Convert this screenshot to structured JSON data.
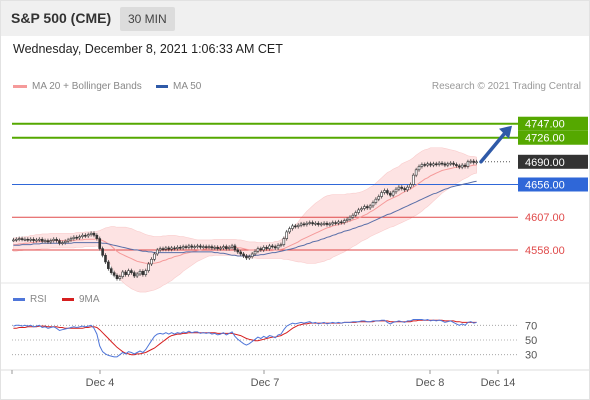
{
  "header": {
    "title": "S&P 500 (CME)",
    "timeframe": "30 MIN"
  },
  "datetime": "Wednesday, December 8, 2021 1:06:33 AM CET",
  "legend": {
    "ma20": "MA 20 + Bollinger Bands",
    "ma50": "MA 50"
  },
  "credit": "Research © 2021 Trading Central",
  "osc_legend": {
    "rsi": "RSI",
    "ma": "9MA"
  },
  "colors": {
    "green": "#55a800",
    "blue": "#2f67d8",
    "red": "#e04a4a",
    "current": "#333333",
    "arrow": "#2f5aa8",
    "bb_fill": "#fde3e3",
    "ma20": "#f59a9a",
    "ma50": "#5a6fa8",
    "rsi": "#4f76d9",
    "rsi_ma": "#d61f1f"
  },
  "chart_data": [
    {
      "type": "candlestick",
      "title": "S&P 500 (CME)",
      "timeframe": "30 MIN",
      "ylim": [
        4510,
        4790
      ],
      "x_tick_labels": [
        "Dec 4",
        "Dec 7",
        "Dec 8",
        "Dec 14"
      ],
      "series": [
        {
          "name": "Price",
          "values": [
            4573,
            4574,
            4575,
            4574,
            4574,
            4573,
            4574,
            4572,
            4573,
            4574,
            4571,
            4572,
            4570,
            4572,
            4574,
            4572,
            4568,
            4569,
            4571,
            4573,
            4575,
            4577,
            4576,
            4578,
            4580,
            4579,
            4581,
            4583,
            4580,
            4575,
            4560,
            4550,
            4540,
            4530,
            4524,
            4520,
            4515,
            4518,
            4525,
            4521,
            4527,
            4524,
            4519,
            4522,
            4526,
            4521,
            4527,
            4537,
            4544,
            4552,
            4558,
            4560,
            4559,
            4561,
            4559,
            4561,
            4560,
            4562,
            4561,
            4563,
            4562,
            4564,
            4562,
            4563,
            4564,
            4562,
            4563,
            4562,
            4563,
            4561,
            4562,
            4560,
            4561,
            4563,
            4560,
            4562,
            4564,
            4558,
            4555,
            4552,
            4549,
            4546,
            4548,
            4552,
            4556,
            4560,
            4558,
            4562,
            4560,
            4564,
            4563,
            4561,
            4565,
            4566,
            4575,
            4585,
            4590,
            4594,
            4593,
            4595,
            4597,
            4596,
            4598,
            4599,
            4597,
            4598,
            4596,
            4597,
            4598,
            4596,
            4597,
            4599,
            4598,
            4600,
            4599,
            4602,
            4604,
            4607,
            4610,
            4614,
            4618,
            4620,
            4623,
            4621,
            4624,
            4629,
            4634,
            4638,
            4644,
            4647,
            4643,
            4640,
            4645,
            4649,
            4652,
            4650,
            4648,
            4652,
            4656,
            4670,
            4678,
            4683,
            4686,
            4685,
            4687,
            4685,
            4687,
            4686,
            4688,
            4687,
            4685,
            4687,
            4688,
            4686,
            4684,
            4682,
            4685,
            4683,
            4690,
            4691,
            4689,
            4690
          ]
        },
        {
          "name": "MA 20",
          "values": [
            4566,
            4566,
            4567,
            4567,
            4568,
            4568,
            4569,
            4569,
            4570,
            4570,
            4571,
            4571,
            4571,
            4572,
            4572,
            4572,
            4572,
            4572,
            4572,
            4572,
            4572,
            4572,
            4573,
            4573,
            4573,
            4574,
            4574,
            4574,
            4574,
            4575,
            4574,
            4572,
            4570,
            4567,
            4564,
            4560,
            4556,
            4553,
            4551,
            4549,
            4547,
            4545,
            4543,
            4541,
            4540,
            4539,
            4538,
            4538,
            4538,
            4538,
            4539,
            4540,
            4542,
            4543,
            4545,
            4546,
            4548,
            4549,
            4550,
            4552,
            4553,
            4554,
            4555,
            4556,
            4557,
            4558,
            4559,
            4560,
            4561,
            4561,
            4562,
            4562,
            4562,
            4562,
            4562,
            4562,
            4562,
            4562,
            4561,
            4561,
            4560,
            4559,
            4558,
            4558,
            4558,
            4557,
            4557,
            4557,
            4557,
            4557,
            4557,
            4558,
            4558,
            4559,
            4560,
            4562,
            4564,
            4566,
            4568,
            4570,
            4573,
            4575,
            4577,
            4579,
            4581,
            4583,
            4585,
            4587,
            4589,
            4591,
            4592,
            4594,
            4595,
            4596,
            4597,
            4598,
            4600,
            4601,
            4603,
            4604,
            4606,
            4608,
            4610,
            4612,
            4615,
            4617,
            4620,
            4623,
            4626,
            4629,
            4632,
            4634,
            4636,
            4638,
            4640,
            4643,
            4645,
            4647,
            4649,
            4652,
            4655,
            4658,
            4661,
            4664,
            4666,
            4669,
            4671,
            4673,
            4675,
            4677,
            4678,
            4679,
            4680,
            4681,
            4682,
            4682,
            4683,
            4683,
            4683,
            4684,
            4685,
            4685
          ]
        },
        {
          "name": "MA 50",
          "values": [
            4565,
            4565,
            4565,
            4566,
            4566,
            4566,
            4566,
            4567,
            4567,
            4567,
            4568,
            4568,
            4568,
            4568,
            4568,
            4568,
            4568,
            4568,
            4568,
            4568,
            4568,
            4569,
            4569,
            4569,
            4569,
            4569,
            4569,
            4569,
            4569,
            4569,
            4569,
            4568,
            4568,
            4567,
            4566,
            4565,
            4564,
            4563,
            4562,
            4561,
            4560,
            4559,
            4558,
            4558,
            4557,
            4556,
            4556,
            4555,
            4555,
            4554,
            4554,
            4554,
            4554,
            4554,
            4554,
            4554,
            4554,
            4554,
            4554,
            4554,
            4555,
            4555,
            4555,
            4555,
            4555,
            4555,
            4555,
            4555,
            4555,
            4555,
            4554,
            4554,
            4553,
            4553,
            4552,
            4551,
            4550,
            4550,
            4549,
            4549,
            4549,
            4549,
            4549,
            4549,
            4550,
            4550,
            4551,
            4551,
            4552,
            4553,
            4554,
            4554,
            4555,
            4556,
            4557,
            4558,
            4559,
            4560,
            4561,
            4563,
            4564,
            4565,
            4567,
            4568,
            4570,
            4571,
            4572,
            4574,
            4575,
            4577,
            4578,
            4580,
            4581,
            4583,
            4584,
            4586,
            4587,
            4588,
            4590,
            4591,
            4593,
            4594,
            4596,
            4597,
            4599,
            4601,
            4603,
            4605,
            4607,
            4609,
            4611,
            4612,
            4614,
            4616,
            4618,
            4620,
            4622,
            4624,
            4626,
            4628,
            4630,
            4632,
            4634,
            4636,
            4638,
            4640,
            4642,
            4643,
            4645,
            4647,
            4649,
            4650,
            4652,
            4653,
            4654,
            4655,
            4656,
            4657,
            4658,
            4659,
            4660,
            4661
          ]
        }
      ],
      "bollinger_band_width": [
        10,
        10,
        10,
        10,
        10,
        10,
        11,
        11,
        11,
        11,
        11,
        11,
        11,
        11,
        11,
        11,
        11,
        11,
        11,
        11,
        11,
        11,
        11,
        11,
        11,
        11,
        11,
        11,
        11,
        11,
        13,
        17,
        21,
        25,
        29,
        33,
        36,
        39,
        41,
        43,
        44,
        45,
        45,
        45,
        45,
        44,
        43,
        42,
        41,
        40,
        39,
        38,
        37,
        36,
        35,
        34,
        32,
        30,
        28,
        26,
        24,
        22,
        20,
        18,
        16,
        15,
        14,
        13,
        12,
        12,
        12,
        12,
        12,
        12,
        12,
        12,
        12,
        12,
        12,
        12,
        12,
        12,
        12,
        12,
        12,
        12,
        12,
        12,
        12,
        12,
        12,
        13,
        13,
        14,
        16,
        18,
        21,
        24,
        27,
        30,
        33,
        36,
        39,
        41,
        43,
        45,
        46,
        47,
        48,
        48,
        48,
        47,
        46,
        45,
        44,
        43,
        42,
        41,
        40,
        39,
        38,
        37,
        37,
        37,
        37,
        37,
        38,
        39,
        40,
        41,
        42,
        42,
        43,
        43,
        43,
        44,
        44,
        44,
        44,
        44,
        45,
        45,
        45,
        44,
        43,
        42,
        40,
        38,
        36,
        34,
        32,
        30,
        28,
        26,
        24,
        22,
        20,
        18,
        16,
        14,
        13,
        12
      ],
      "levels": [
        {
          "label": "4747.00",
          "value": 4747,
          "color": "green"
        },
        {
          "label": "4726.00",
          "value": 4726,
          "color": "green"
        },
        {
          "label": "4690.00",
          "value": 4690,
          "color": "current"
        },
        {
          "label": "4656.00",
          "value": 4656,
          "color": "blue"
        },
        {
          "label": "4607.00",
          "value": 4607,
          "color": "red"
        },
        {
          "label": "4558.00",
          "value": 4558,
          "color": "red"
        }
      ]
    },
    {
      "type": "line",
      "title": "RSI",
      "ylim": [
        20,
        80
      ],
      "y_ticks": [
        70,
        50,
        30
      ],
      "series": [
        {
          "name": "RSI",
          "values": [
            69,
            70,
            70,
            69,
            70,
            69,
            70,
            68,
            69,
            70,
            67,
            68,
            66,
            67,
            68,
            66,
            63,
            64,
            65,
            66,
            67,
            68,
            67,
            68,
            69,
            68,
            69,
            70,
            66,
            58,
            42,
            34,
            31,
            29,
            28,
            27,
            27,
            30,
            33,
            31,
            34,
            33,
            31,
            33,
            35,
            33,
            37,
            43,
            49,
            55,
            58,
            59,
            58,
            60,
            58,
            60,
            58,
            60,
            59,
            61,
            60,
            62,
            60,
            61,
            61,
            59,
            60,
            59,
            60,
            58,
            59,
            57,
            58,
            60,
            57,
            59,
            61,
            55,
            51,
            48,
            45,
            43,
            45,
            48,
            51,
            54,
            52,
            55,
            53,
            56,
            55,
            53,
            57,
            58,
            64,
            69,
            71,
            73,
            72,
            73,
            74,
            73,
            74,
            75,
            73,
            74,
            72,
            73,
            74,
            72,
            73,
            74,
            73,
            74,
            73,
            74,
            74,
            74,
            75,
            75,
            75,
            76,
            76,
            75,
            75,
            76,
            76,
            76,
            77,
            77,
            74,
            72,
            74,
            75,
            76,
            75,
            74,
            76,
            76,
            78,
            78,
            78,
            78,
            77,
            78,
            76,
            77,
            76,
            77,
            76,
            74,
            75,
            76,
            74,
            72,
            70,
            72,
            70,
            74,
            75,
            73,
            74
          ]
        },
        {
          "name": "9MA",
          "values": [
            66,
            66,
            67,
            67,
            67,
            68,
            68,
            68,
            68,
            69,
            69,
            69,
            68,
            68,
            68,
            68,
            67,
            67,
            66,
            66,
            66,
            66,
            66,
            66,
            66,
            67,
            67,
            68,
            68,
            67,
            64,
            60,
            56,
            52,
            48,
            44,
            40,
            37,
            34,
            32,
            31,
            30,
            30,
            31,
            31,
            32,
            33,
            35,
            37,
            39,
            42,
            45,
            48,
            51,
            54,
            56,
            57,
            58,
            58,
            59,
            59,
            60,
            60,
            60,
            60,
            60,
            60,
            60,
            60,
            60,
            60,
            59,
            59,
            59,
            59,
            59,
            59,
            58,
            57,
            56,
            54,
            52,
            51,
            50,
            49,
            49,
            50,
            51,
            52,
            53,
            54,
            54,
            55,
            56,
            58,
            60,
            63,
            66,
            68,
            70,
            71,
            72,
            72,
            73,
            73,
            73,
            73,
            73,
            73,
            73,
            73,
            73,
            73,
            73,
            73,
            74,
            74,
            74,
            74,
            74,
            75,
            75,
            75,
            75,
            75,
            75,
            76,
            76,
            76,
            76,
            76,
            75,
            75,
            75,
            75,
            75,
            75,
            75,
            75,
            76,
            76,
            77,
            77,
            77,
            77,
            77,
            77,
            77,
            77,
            77,
            76,
            76,
            76,
            76,
            75,
            75,
            74,
            74,
            74,
            74,
            74,
            74
          ]
        }
      ]
    }
  ]
}
